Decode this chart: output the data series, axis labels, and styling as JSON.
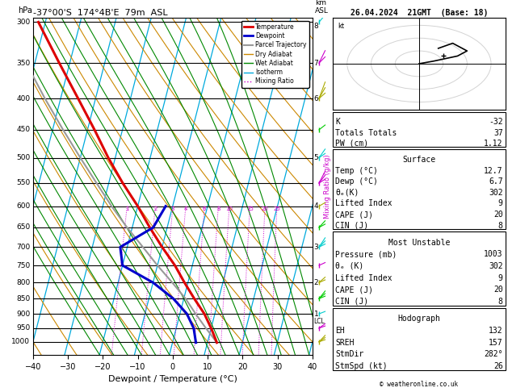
{
  "title_left": "-37°00'S  174°4B'E  79m  ASL",
  "title_right": "26.04.2024  21GMT  (Base: 18)",
  "xlabel": "Dewpoint / Temperature (°C)",
  "pressure_levels": [
    300,
    350,
    400,
    450,
    500,
    550,
    600,
    650,
    700,
    750,
    800,
    850,
    900,
    950,
    1000
  ],
  "xlim": [
    -40,
    40
  ],
  "pmin": 295,
  "pmax": 1050,
  "skew": 1.0,
  "temp_profile_p": [
    1003,
    950,
    900,
    850,
    800,
    750,
    700,
    650,
    600,
    550,
    500,
    450,
    400,
    350,
    300
  ],
  "temp_profile_t": [
    12.7,
    10.0,
    7.0,
    3.0,
    -1.0,
    -5.0,
    -10.0,
    -15.0,
    -20.0,
    -26.0,
    -32.0,
    -38.0,
    -45.0,
    -53.0,
    -62.0
  ],
  "dewp_profile_p": [
    1003,
    950,
    900,
    850,
    800,
    750,
    700,
    650,
    600
  ],
  "dewp_profile_t": [
    6.7,
    5.0,
    2.0,
    -3.0,
    -10.0,
    -20.0,
    -22.0,
    -14.0,
    -12.0
  ],
  "parcel_p": [
    1003,
    950,
    900,
    850,
    800,
    750,
    700,
    650,
    600,
    550,
    500,
    450,
    400,
    350,
    300
  ],
  "parcel_t": [
    12.7,
    8.5,
    4.5,
    0.5,
    -4.5,
    -10.0,
    -15.5,
    -21.5,
    -27.5,
    -33.5,
    -40.0,
    -47.0,
    -54.5,
    -62.5,
    -71.5
  ],
  "lcl_pressure": 925,
  "mixing_ratio_values": [
    1,
    2,
    3,
    4,
    6,
    8,
    10,
    15,
    20,
    25
  ],
  "km_labels": [
    1,
    2,
    3,
    4,
    5,
    6,
    7,
    8
  ],
  "km_pressures": [
    900,
    800,
    700,
    600,
    500,
    400,
    350,
    305
  ],
  "surface_temp": 12.7,
  "surface_dewp": 6.7,
  "surface_theta_e": 302,
  "surface_lifted_index": 9,
  "surface_cape": 20,
  "surface_cin": 8,
  "mu_pressure": 1003,
  "mu_theta_e": 302,
  "mu_lifted_index": 9,
  "mu_cape": 20,
  "mu_cin": 8,
  "K_index": -32,
  "totals_totals": 37,
  "PW_cm": 1.12,
  "EH": 132,
  "SREH": 157,
  "StmDir": 282,
  "StmSpd": 26,
  "hodo_u": [
    0,
    3,
    8,
    10,
    7,
    4
  ],
  "hodo_v": [
    0,
    1,
    3,
    5,
    8,
    6
  ],
  "bg_color": "#ffffff",
  "temp_color": "#dd0000",
  "dewp_color": "#0000cc",
  "parcel_color": "#999999",
  "dry_adiabat_color": "#cc8800",
  "wet_adiabat_color": "#008800",
  "isotherm_color": "#00aadd",
  "mixing_ratio_color": "#cc00cc",
  "wind_colors": [
    "#00cccc",
    "#cc00cc",
    "#aaaa00",
    "#00cc00"
  ]
}
